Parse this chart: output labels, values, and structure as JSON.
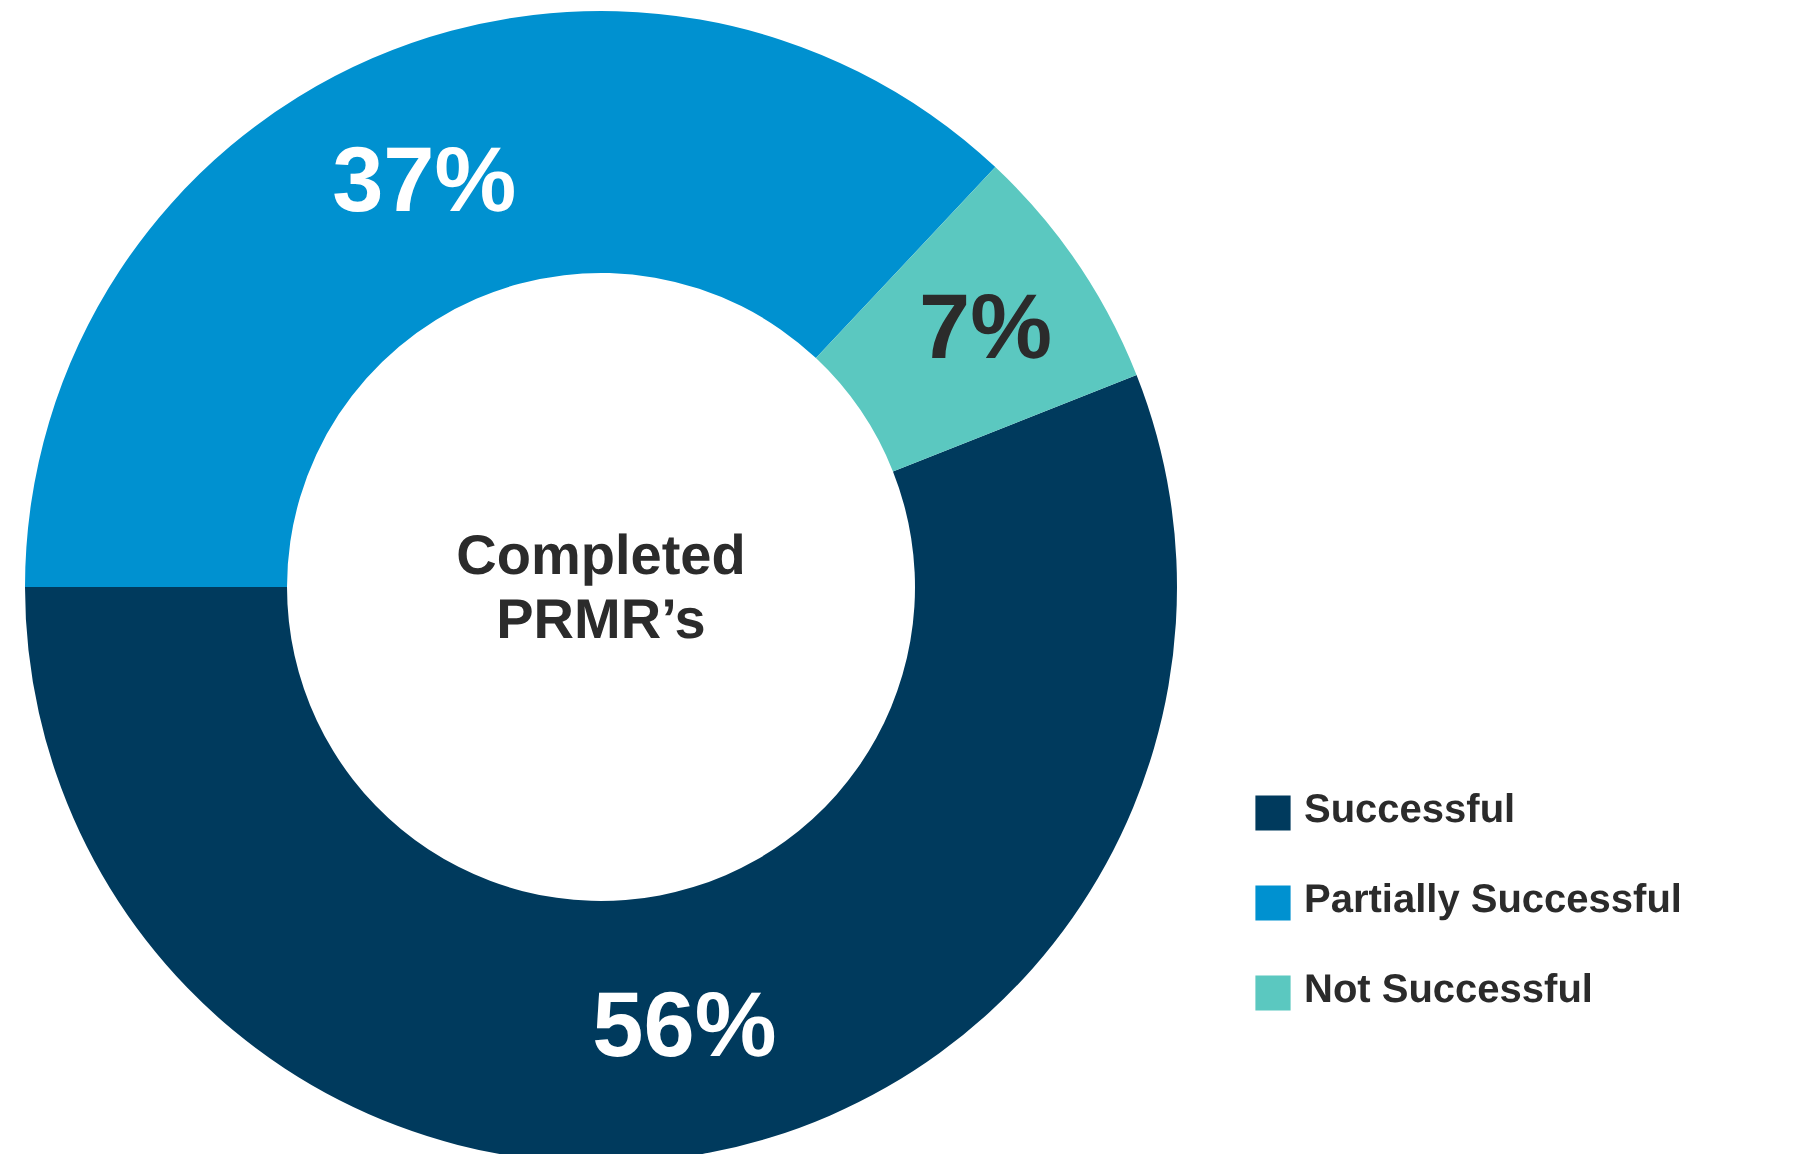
{
  "chart_data": {
    "type": "donut",
    "title": "Completed PRMR’s",
    "categories": [
      "Successful",
      "Partially Successful",
      "Not Successful"
    ],
    "values": [
      56,
      37,
      7
    ],
    "colors": [
      "#003a5d",
      "#0091d0",
      "#5bc8c0"
    ],
    "value_labels": [
      "56%",
      "37%",
      "7%"
    ],
    "legend": "bottom right"
  }
}
